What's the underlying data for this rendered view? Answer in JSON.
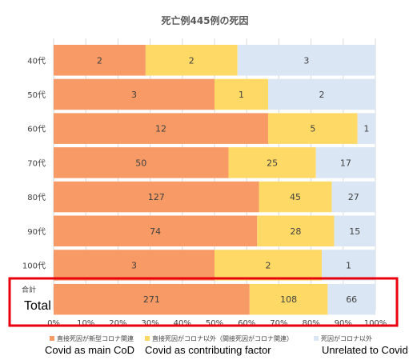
{
  "chart_data": {
    "type": "bar",
    "orientation": "horizontal",
    "stacked": "percent",
    "title": "死亡例445例の死因",
    "categories": [
      "40代",
      "50代",
      "60代",
      "70代",
      "80代",
      "90代",
      "100代",
      "合計"
    ],
    "series": [
      {
        "name": "直接死因が新型コロナ関連",
        "values": [
          2,
          3,
          12,
          50,
          127,
          74,
          3,
          271
        ],
        "color": "#f79a66"
      },
      {
        "name": "直接死因がコロナ以外（間接死因がコロナ関連）",
        "values": [
          2,
          1,
          5,
          25,
          45,
          28,
          2,
          108
        ],
        "color": "#ffd966"
      },
      {
        "name": "死因がコロナ以外",
        "values": [
          3,
          2,
          1,
          17,
          27,
          15,
          1,
          66
        ],
        "color": "#dae6f4"
      }
    ],
    "x_ticks": [
      "0%",
      "10%",
      "20%",
      "30%",
      "40%",
      "50%",
      "60%",
      "70%",
      "80%",
      "90%",
      "100%"
    ],
    "xlim": [
      0,
      100
    ],
    "grid": true,
    "legend_position": "bottom",
    "annotations": {
      "total_label": "Total",
      "series_translations": [
        "Covid as main CoD",
        "Covid as contributing factor",
        "Unrelated to Covid"
      ],
      "highlight_color": "#e8000d"
    }
  }
}
